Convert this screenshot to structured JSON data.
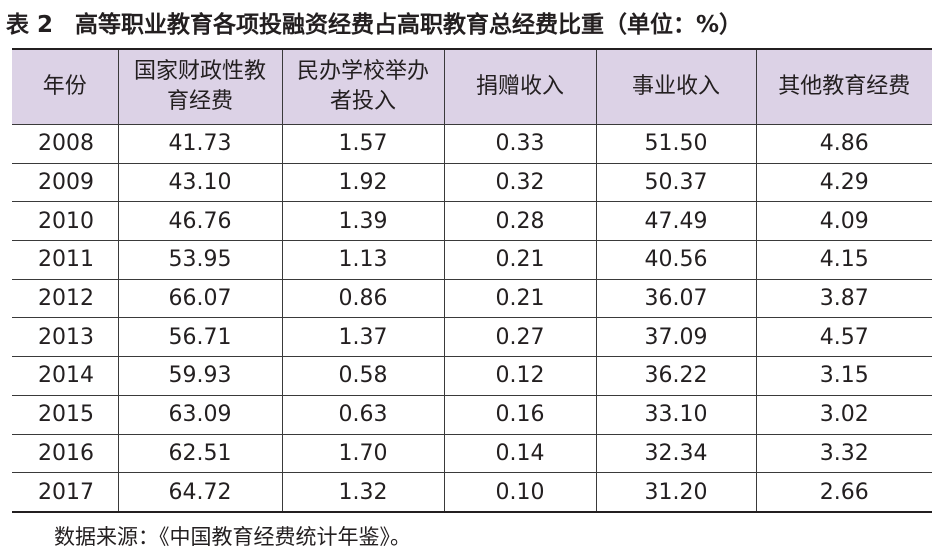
{
  "title": {
    "number": "表 2",
    "text": "高等职业教育各项投融资经费占高职教育总经费比重（单位：%）"
  },
  "table": {
    "headers": [
      "年份",
      "国家财政性教育经费",
      "民办学校举办者投入",
      "捐赠收入",
      "事业收入",
      "其他教育经费"
    ],
    "rows": [
      [
        "2008",
        "41.73",
        "1.57",
        "0.33",
        "51.50",
        "4.86"
      ],
      [
        "2009",
        "43.10",
        "1.92",
        "0.32",
        "50.37",
        "4.29"
      ],
      [
        "2010",
        "46.76",
        "1.39",
        "0.28",
        "47.49",
        "4.09"
      ],
      [
        "2011",
        "53.95",
        "1.13",
        "0.21",
        "40.56",
        "4.15"
      ],
      [
        "2012",
        "66.07",
        "0.86",
        "0.21",
        "36.07",
        "3.87"
      ],
      [
        "2013",
        "56.71",
        "1.37",
        "0.27",
        "37.09",
        "4.57"
      ],
      [
        "2014",
        "59.93",
        "0.58",
        "0.12",
        "36.22",
        "3.15"
      ],
      [
        "2015",
        "63.09",
        "0.63",
        "0.16",
        "33.10",
        "3.02"
      ],
      [
        "2016",
        "62.51",
        "1.70",
        "0.14",
        "32.34",
        "3.32"
      ],
      [
        "2017",
        "64.72",
        "1.32",
        "0.10",
        "31.20",
        "2.66"
      ]
    ]
  },
  "source": "数据来源：《中国教育经费统计年鉴》。",
  "colors": {
    "header_background": "#dcd2e6",
    "text": "#231f20",
    "rule": "#3a3a3a"
  }
}
